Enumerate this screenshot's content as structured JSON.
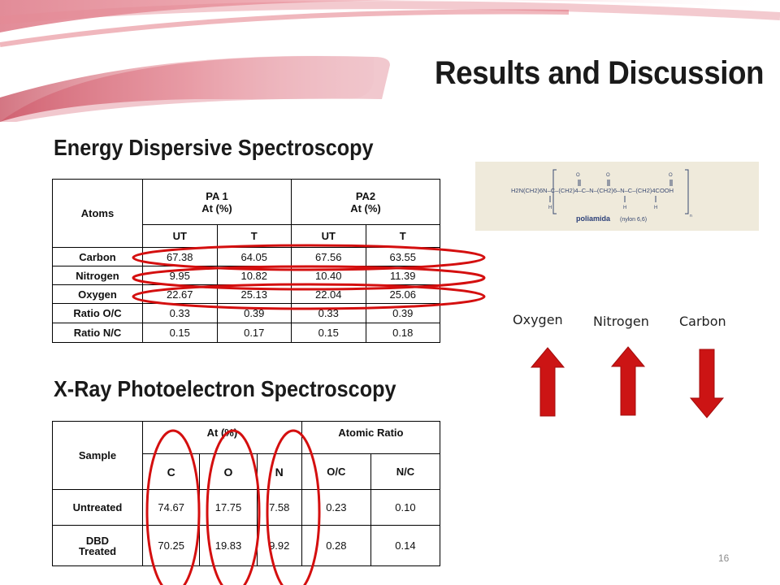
{
  "slide": {
    "title": "Results and Discussion",
    "page_number": "16"
  },
  "eds": {
    "heading": "Energy Dispersive Spectroscopy",
    "header": {
      "atoms": "Atoms",
      "pa1_line1": "PA 1",
      "pa1_line2": "At (%)",
      "pa2_line1": "PA2",
      "pa2_line2": "At (%)",
      "sub": [
        "UT",
        "T",
        "UT",
        "T"
      ]
    },
    "rows": [
      {
        "label": "Carbon",
        "values": [
          "67.38",
          "64.05",
          "67.56",
          "63.55"
        ]
      },
      {
        "label": "Nitrogen",
        "values": [
          "9.95",
          "10.82",
          "10.40",
          "11.39"
        ]
      },
      {
        "label": "Oxygen",
        "values": [
          "22.67",
          "25.13",
          "22.04",
          "25.06"
        ]
      },
      {
        "label": "Ratio O/C",
        "values": [
          "0.33",
          "0.39",
          "0.33",
          "0.39"
        ]
      },
      {
        "label": "Ratio N/C",
        "values": [
          "0.15",
          "0.17",
          "0.15",
          "0.18"
        ]
      }
    ]
  },
  "xps": {
    "heading": "X-Ray Photoelectron Spectroscopy",
    "header": {
      "sample": "Sample",
      "at": "At (%)",
      "ratio": "Atomic Ratio",
      "c": "C",
      "o": "O",
      "n": "N",
      "oc": "O/C",
      "nc": "N/C"
    },
    "rows": [
      {
        "label": "Untreated",
        "values": [
          "74.67",
          "17.75",
          "7.58",
          "0.23",
          "0.10"
        ]
      },
      {
        "label_line1": "DBD",
        "label_line2": "Treated",
        "values": [
          "70.25",
          "19.83",
          "9.92",
          "0.28",
          "0.14"
        ]
      }
    ]
  },
  "structure": {
    "formula": "H2N(CH2)6N–C–(CH2)4–C–N–(CH2)6–N–C–(CH2)4COOH",
    "caption_bold": "poliamida",
    "caption_paren": "(nylon 6,6)"
  },
  "trends": [
    {
      "label": "Oxygen",
      "direction": "up",
      "icon": "arrow-up-icon"
    },
    {
      "label": "Nitrogen",
      "direction": "up",
      "icon": "arrow-up-icon"
    },
    {
      "label": "Carbon",
      "direction": "down",
      "icon": "arrow-down-icon"
    }
  ],
  "colors": {
    "accent_red": "#d40f0f",
    "arrow_red": "#cc1414",
    "banner_pink": "#d8505f"
  }
}
